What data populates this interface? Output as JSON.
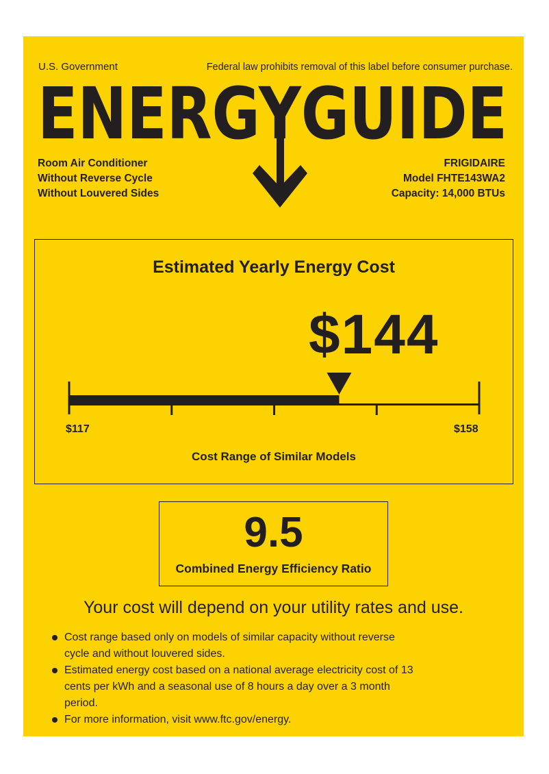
{
  "header": {
    "agency": "U.S. Government",
    "notice": "Federal law prohibits removal of this label before consumer purchase.",
    "title": "ENERGYGUIDE"
  },
  "product": {
    "type_lines": [
      "Room Air Conditioner",
      "Without Reverse Cycle",
      "Without Louvered Sides"
    ],
    "brand": "FRIGIDAIRE",
    "model": "Model FHTE143WA2",
    "capacity": "Capacity: 14,000 BTUs"
  },
  "cost": {
    "heading": "Estimated Yearly Energy Cost",
    "value_display": "$144",
    "value": 144,
    "range_min": 117,
    "range_max": 158,
    "range_min_label": "$117",
    "range_max_label": "$158",
    "range_caption": "Cost Range of Similar Models"
  },
  "efficiency": {
    "value": "9.5",
    "caption": "Combined Energy Efficiency Ratio"
  },
  "footer": {
    "headline": "Your cost will depend on your utility rates and use.",
    "bullets": [
      "Cost range based only on models of similar capacity without reverse cycle and without louvered sides.",
      "Estimated energy cost based on a national average electricity cost of 13 cents per kWh and a seasonal use of 8 hours a day over a 3 month period.",
      "For more information, visit www.ftc.gov/energy."
    ]
  },
  "colors": {
    "background": "#fcd200",
    "ink": "#231f20"
  }
}
